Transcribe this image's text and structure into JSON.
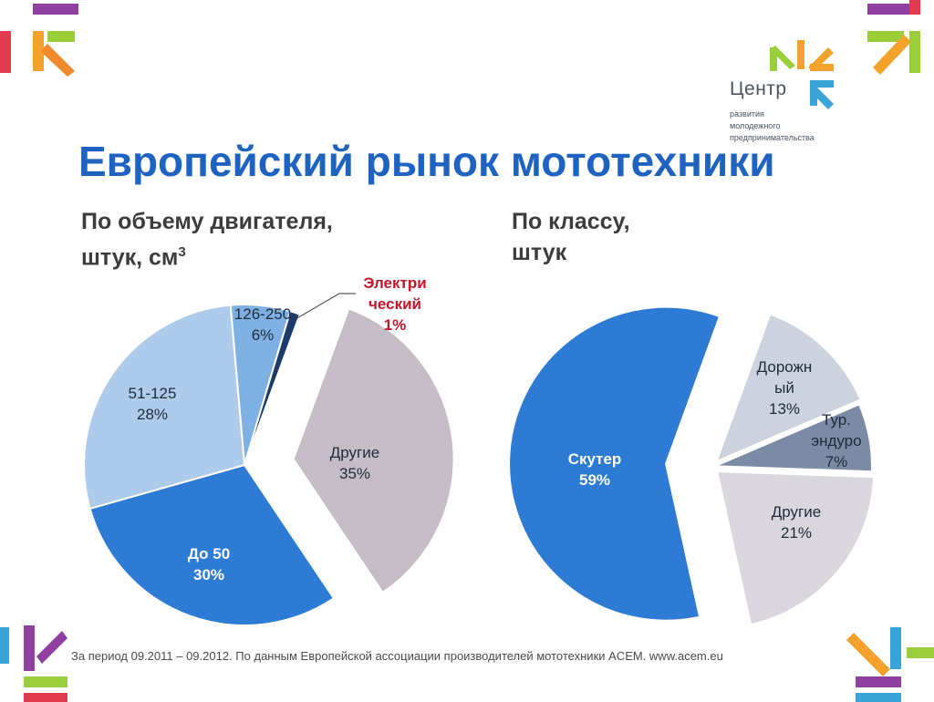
{
  "title": "Европейский рынок мототехники",
  "logo": {
    "name": "Центр",
    "line1": "развития",
    "line2": "молодежного",
    "line3": "предпринимательства"
  },
  "left_subtitle": {
    "line1": "По объему двигателя,",
    "line2": "штук, см",
    "sup": "3"
  },
  "right_subtitle": {
    "line1": "По классу,",
    "line2": "штук"
  },
  "footnote": "За период 09.2011 – 09.2012. По данным Европейской ассоциации производителей мототехники ACEM. www.acem.eu",
  "colors": {
    "title": "#1f63c2",
    "blue": "#2e7bd6",
    "light_blue": "#aecbec",
    "mid_blue": "#7fb0e4",
    "navy": "#1c3b68",
    "mauve": "#c5bcc6",
    "light_gray_blue": "#ccd3df",
    "slate": "#7b8ba6",
    "light_mauve": "#dad6dd",
    "electric_label": "#c0182a"
  },
  "chart_data": [
    {
      "type": "pie",
      "title": "По объему двигателя, штук, см3",
      "slices": [
        {
          "label": "126-250",
          "value": 6
        },
        {
          "label": "Электрический",
          "value": 1
        },
        {
          "label": "Другие",
          "value": 35
        },
        {
          "label": "До 50",
          "value": 30
        },
        {
          "label": "51-125",
          "value": 28
        }
      ]
    },
    {
      "type": "pie",
      "title": "По классу, штук",
      "slices": [
        {
          "label": "Дорожный",
          "value": 13
        },
        {
          "label": "Тур. эндуро",
          "value": 7
        },
        {
          "label": "Другие",
          "value": 21
        },
        {
          "label": "Скутер",
          "value": 59
        }
      ]
    }
  ],
  "pie_labels": {
    "left": [
      {
        "lines": [
          "126-250",
          "6%"
        ]
      },
      {
        "lines": [
          "Электри",
          "ческий",
          "1%"
        ]
      },
      {
        "lines": [
          "Другие",
          "35%"
        ]
      },
      {
        "lines": [
          "До 50",
          "30%"
        ]
      },
      {
        "lines": [
          "51-125",
          "28%"
        ]
      }
    ],
    "right": [
      {
        "lines": [
          "Дорожн",
          "ый",
          "13%"
        ]
      },
      {
        "lines": [
          "Тур.",
          "эндуро",
          "7%"
        ]
      },
      {
        "lines": [
          "Другие",
          "21%"
        ]
      },
      {
        "lines": [
          "Скутер",
          "59%"
        ]
      }
    ]
  }
}
